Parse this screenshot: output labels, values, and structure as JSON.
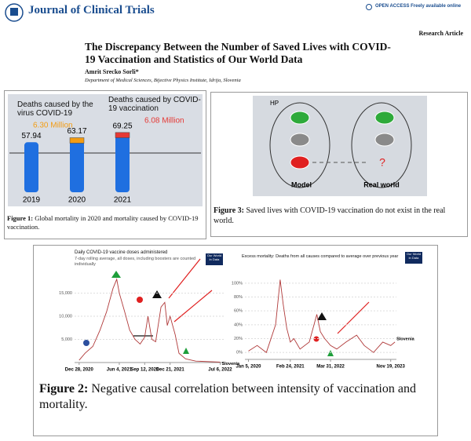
{
  "header": {
    "journal": "Journal of Clinical Trials",
    "access": "OPEN ACCESS Freely available online",
    "article_type": "Research Article"
  },
  "title": "The Discrepancy Between the Number of Saved Lives with COVID-19 Vaccination and Statistics of Our World Data",
  "author": "Amrit Srecko Sorli*",
  "affiliation": "Department of Medical Sciences, Bijective Physics Institute, Idrija, Slovenia",
  "figure1": {
    "chart_data": {
      "type": "bar",
      "categories": [
        "2019",
        "2020",
        "2021"
      ],
      "values": [
        57.94,
        63.17,
        69.25
      ],
      "color": "#1f6fe0",
      "segment_values": [
        null,
        6.3,
        6.08
      ],
      "segment_value_labels": [
        null,
        "6.30 Million",
        "6.08 Million"
      ],
      "segment_colors": [
        null,
        "#f39c12",
        "#e53935"
      ],
      "annotations": [
        "Deaths caused by the virus COVID-19",
        "Deaths caused by COVID-19 vaccination"
      ]
    },
    "caption_label": "Figure 1:",
    "caption": "Global mortality in 2020 and mortality caused by COVID-19 vaccination."
  },
  "figure3": {
    "labels": {
      "hp": "HP",
      "model": "Model",
      "real_world": "Real world",
      "unknown": "?"
    },
    "caption_label": "Figure 3:",
    "caption": "Saved lives with COVID-19 vaccination do not exist in the real world."
  },
  "figure2": {
    "chart_data": [
      {
        "type": "line",
        "title": "Daily COVID-19 vaccine doses administered",
        "subtitle": "7-day rolling average, all doses, including boosters are counted individually",
        "source": "Our World in Data",
        "x": [
          "2020-12-28",
          "2021-01-20",
          "2021-02-20",
          "2021-03-20",
          "2021-04-15",
          "2021-05-10",
          "2021-05-25",
          "2021-06-04",
          "2021-06-25",
          "2021-07-15",
          "2021-08-05",
          "2021-08-25",
          "2021-09-12",
          "2021-09-25",
          "2021-10-10",
          "2021-10-25",
          "2021-11-15",
          "2021-11-30",
          "2021-12-10",
          "2021-12-21",
          "2022-01-10",
          "2022-01-25",
          "2022-02-20",
          "2022-04-01",
          "2022-07-06"
        ],
        "series": [
          {
            "name": "Slovenia",
            "color": "#b03a3a",
            "values": [
              500,
              2000,
              3500,
              7000,
              11000,
              16000,
              18000,
              15000,
              11000,
              7000,
              5000,
              4000,
              5500,
              10000,
              5000,
              4500,
              12000,
              13000,
              8000,
              10000,
              6000,
              2000,
              800,
              300,
              100
            ]
          }
        ],
        "xlim": [
          "2020-12-10",
          "2022-07-20"
        ],
        "xticks": [
          {
            "value": "2020-12-28",
            "label": "Dec 28, 2020"
          },
          {
            "value": "2021-06-04",
            "label": "Jun 4, 2021"
          },
          {
            "value": "2021-09-12",
            "label": "Sep 12, 2021"
          },
          {
            "value": "2021-12-21",
            "label": "Dec 21, 2021"
          },
          {
            "value": "2022-07-06",
            "label": "Jul 6, 2022"
          }
        ],
        "ylim": [
          0,
          19000
        ],
        "yticks": [
          {
            "value": 5000,
            "label": "5,000"
          },
          {
            "value": 10000,
            "label": "10,000"
          },
          {
            "value": 15000,
            "label": "15,000"
          }
        ],
        "grid": true
      },
      {
        "type": "line",
        "title": "Excess mortality: Deaths from all causes compared to average over previous year",
        "source": "Our World in Data",
        "x": [
          "2020-01-05",
          "2020-04-01",
          "2020-07-01",
          "2020-10-01",
          "2020-11-15",
          "2020-12-15",
          "2021-01-20",
          "2021-02-24",
          "2021-04-01",
          "2021-06-01",
          "2021-09-01",
          "2021-11-15",
          "2021-12-20",
          "2022-02-01",
          "2022-03-31",
          "2022-06-01",
          "2022-09-01",
          "2022-12-15",
          "2023-03-01",
          "2023-06-01",
          "2023-09-01",
          "2023-11-19",
          "2023-12-31"
        ],
        "series": [
          {
            "name": "Slovenia",
            "color": "#b03a3a",
            "values": [
              2,
              10,
              0,
              40,
              105,
              70,
              35,
              15,
              20,
              5,
              15,
              55,
              30,
              20,
              10,
              5,
              15,
              25,
              10,
              0,
              15,
              10,
              15
            ]
          }
        ],
        "xlim": [
          "2019-12-01",
          "2024-01-15"
        ],
        "xticks": [
          {
            "value": "2020-01-05",
            "label": "Jan 5, 2020"
          },
          {
            "value": "2021-02-24",
            "label": "Feb 24, 2021"
          },
          {
            "value": "2022-03-31",
            "label": "Mar 31, 2022"
          },
          {
            "value": "2023-11-19",
            "label": "Nov 19, 2023"
          }
        ],
        "ylim": [
          -10,
          110
        ],
        "yticks": [
          {
            "value": 0,
            "label": "0%"
          },
          {
            "value": 20,
            "label": "20%"
          },
          {
            "value": 40,
            "label": "40%"
          },
          {
            "value": 60,
            "label": "60%"
          },
          {
            "value": 80,
            "label": "80%"
          },
          {
            "value": 100,
            "label": "100%"
          }
        ],
        "grid": true
      }
    ],
    "caption_label": "Figure 2:",
    "caption": "Negative causal correlation between intensity of vaccination and mortality."
  }
}
